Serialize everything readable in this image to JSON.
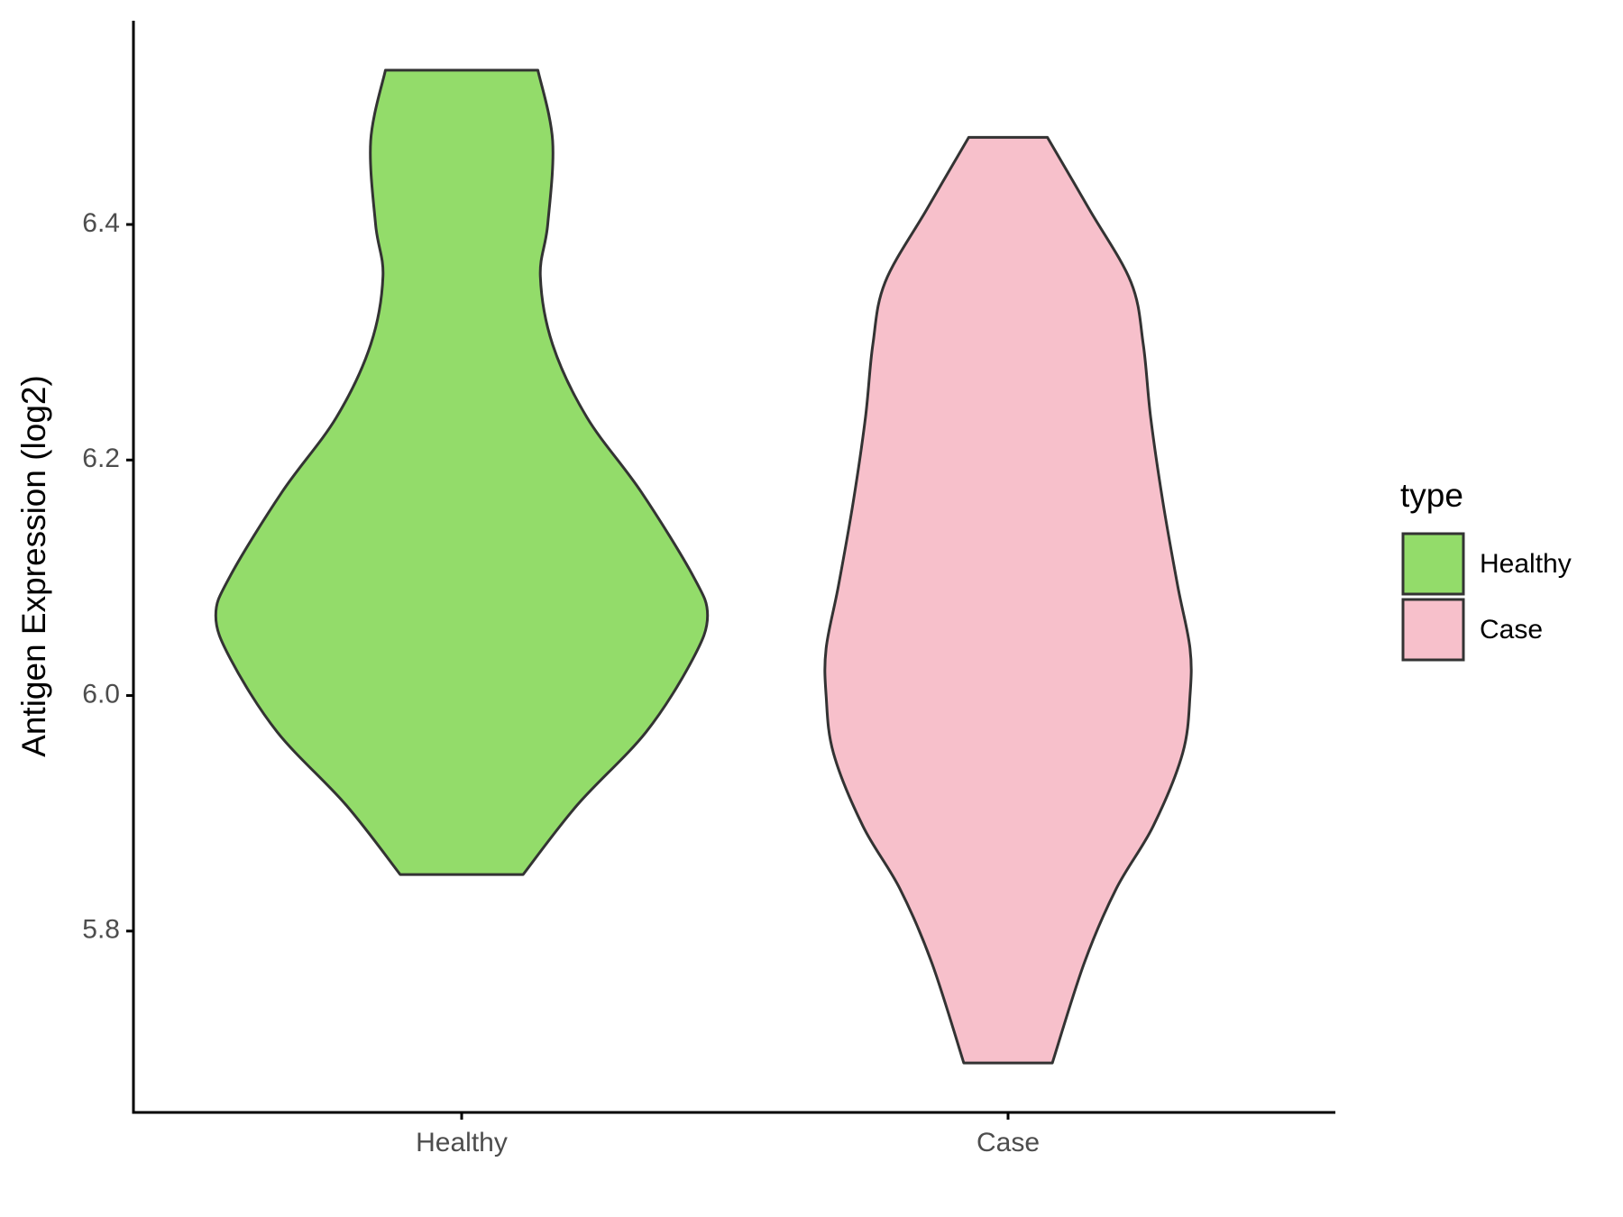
{
  "chart_data": {
    "type": "violin",
    "y_label": "Antigen Expression (log2)",
    "categories": [
      "Healthy",
      "Case"
    ],
    "legend_title": "type",
    "legend_position": "right",
    "ylim": [
      5.646,
      6.573
    ],
    "yticks": [
      5.8,
      {
        "value": 6,
        "label": "6.0"
      },
      6.2,
      6.4
    ],
    "series": [
      {
        "name": "Healthy",
        "color": "#93dc6a",
        "y": [
          5.848,
          5.907,
          5.969,
          6.031,
          6.068,
          6.102,
          6.173,
          6.236,
          6.298,
          6.356,
          6.4,
          6.471,
          6.531
        ],
        "density": [
          0.25,
          0.47,
          0.75,
          0.94,
          1,
          0.94,
          0.73,
          0.51,
          0.37,
          0.32,
          0.35,
          0.37,
          0.31
        ]
      },
      {
        "name": "Case",
        "color": "#f7c0cb",
        "y": [
          5.688,
          5.773,
          5.836,
          5.889,
          5.951,
          6.0,
          6.04,
          6.093,
          6.164,
          6.236,
          6.298,
          6.351,
          6.413,
          6.474
        ],
        "density": [
          0.18,
          0.31,
          0.44,
          0.59,
          0.71,
          0.74,
          0.74,
          0.69,
          0.63,
          0.58,
          0.55,
          0.5,
          0.33,
          0.16
        ]
      }
    ]
  }
}
